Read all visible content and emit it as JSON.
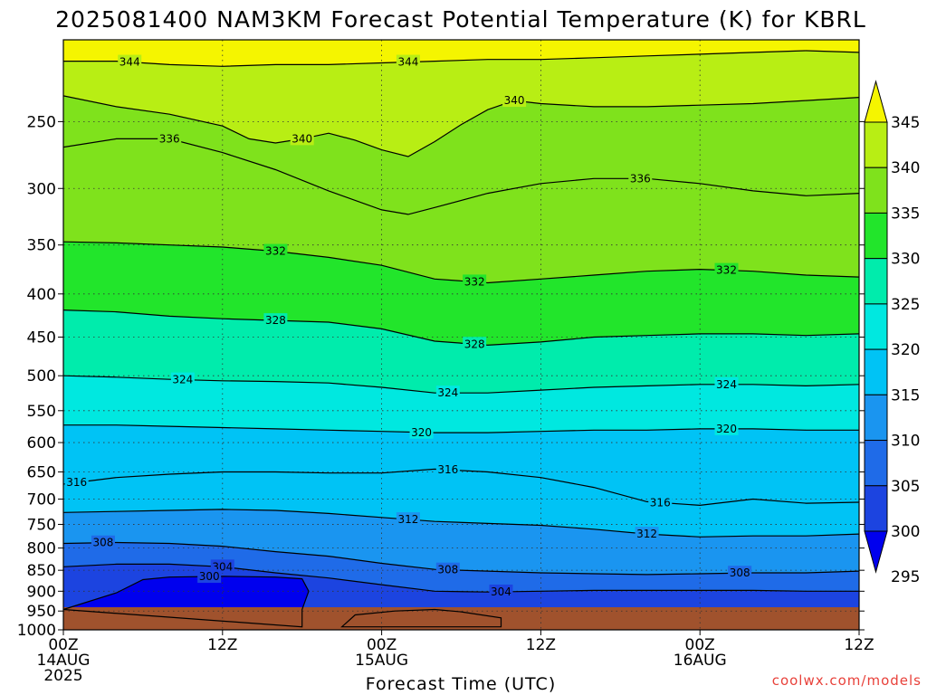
{
  "chart_data": {
    "type": "heatmap",
    "title": "2025081400 NAM3KM Forecast Potential Temperature (K) for KBRL",
    "xlabel": "Forecast Time (UTC)",
    "ylabel": "",
    "credit": "coolwx.com/models",
    "credit_color": "#e8413a",
    "x_ticks": [
      {
        "hour": 0,
        "lines": [
          "00Z",
          "14AUG",
          "2025"
        ]
      },
      {
        "hour": 12,
        "lines": [
          "12Z"
        ]
      },
      {
        "hour": 24,
        "lines": [
          "00Z",
          "15AUG"
        ]
      },
      {
        "hour": 36,
        "lines": [
          "12Z"
        ]
      },
      {
        "hour": 48,
        "lines": [
          "00Z",
          "16AUG"
        ]
      },
      {
        "hour": 60,
        "lines": [
          "12Z"
        ]
      }
    ],
    "xlim": [
      0,
      60
    ],
    "y_ticks": [
      250,
      300,
      350,
      400,
      450,
      500,
      550,
      600,
      650,
      700,
      750,
      800,
      850,
      900,
      950,
      1000
    ],
    "ylim_hpa": [
      200,
      1000
    ],
    "ground_color": "#a0522d",
    "colorbar": {
      "boundaries": [
        295,
        300,
        305,
        310,
        315,
        320,
        325,
        330,
        335,
        340,
        345
      ],
      "colors": [
        "#0000ee",
        "#1c44e0",
        "#1f6be8",
        "#1a95f0",
        "#00c3f5",
        "#00e8e0",
        "#00ecac",
        "#22e52b",
        "#7fe21c",
        "#b8ee14",
        "#f5f500"
      ],
      "tick_labels": [
        "345",
        "340",
        "335",
        "330",
        "325",
        "320",
        "315",
        "310",
        "305",
        "300",
        "295"
      ]
    },
    "levels": [
      {
        "theta": 344,
        "labels": [
          {
            "text": "344",
            "x_hour": 5.0
          },
          {
            "text": "344",
            "x_hour": 26.0
          }
        ],
        "points": [
          [
            0,
            212
          ],
          [
            4,
            212
          ],
          [
            8,
            214
          ],
          [
            12,
            215
          ],
          [
            16,
            214
          ],
          [
            20,
            214
          ],
          [
            24,
            213
          ],
          [
            28,
            212
          ],
          [
            32,
            211
          ],
          [
            36,
            211
          ],
          [
            40,
            210
          ],
          [
            44,
            209
          ],
          [
            48,
            208
          ],
          [
            52,
            207
          ],
          [
            56,
            206
          ],
          [
            60,
            207
          ]
        ]
      },
      {
        "theta": 340,
        "labels": [
          {
            "text": "340",
            "x_hour": 18.0
          },
          {
            "text": "340",
            "x_hour": 34.0
          }
        ],
        "points": [
          [
            0,
            233
          ],
          [
            4,
            240
          ],
          [
            8,
            245
          ],
          [
            12,
            253
          ],
          [
            14,
            262
          ],
          [
            16,
            265
          ],
          [
            18,
            262
          ],
          [
            20,
            258
          ],
          [
            22,
            263
          ],
          [
            24,
            270
          ],
          [
            26,
            275
          ],
          [
            28,
            264
          ],
          [
            30,
            252
          ],
          [
            32,
            242
          ],
          [
            34,
            236
          ],
          [
            36,
            238
          ],
          [
            40,
            240
          ],
          [
            44,
            240
          ],
          [
            48,
            239
          ],
          [
            52,
            238
          ],
          [
            56,
            236
          ],
          [
            60,
            234
          ]
        ]
      },
      {
        "theta": 336,
        "labels": [
          {
            "text": "336",
            "x_hour": 8.0
          },
          {
            "text": "336",
            "x_hour": 43.5
          }
        ],
        "points": [
          [
            0,
            268
          ],
          [
            4,
            262
          ],
          [
            8,
            262
          ],
          [
            12,
            272
          ],
          [
            16,
            285
          ],
          [
            20,
            302
          ],
          [
            24,
            318
          ],
          [
            26,
            322
          ],
          [
            28,
            316
          ],
          [
            32,
            304
          ],
          [
            36,
            296
          ],
          [
            40,
            292
          ],
          [
            44,
            292
          ],
          [
            48,
            296
          ],
          [
            52,
            302
          ],
          [
            56,
            306
          ],
          [
            60,
            304
          ]
        ]
      },
      {
        "theta": 332,
        "labels": [
          {
            "text": "332",
            "x_hour": 16.0
          },
          {
            "text": "332",
            "x_hour": 31.0
          },
          {
            "text": "332",
            "x_hour": 50.0
          }
        ],
        "points": [
          [
            0,
            347
          ],
          [
            4,
            348
          ],
          [
            8,
            350
          ],
          [
            12,
            352
          ],
          [
            16,
            356
          ],
          [
            20,
            362
          ],
          [
            24,
            370
          ],
          [
            28,
            384
          ],
          [
            32,
            388
          ],
          [
            36,
            384
          ],
          [
            40,
            380
          ],
          [
            44,
            376
          ],
          [
            48,
            374
          ],
          [
            52,
            376
          ],
          [
            56,
            380
          ],
          [
            60,
            382
          ]
        ]
      },
      {
        "theta": 328,
        "labels": [
          {
            "text": "328",
            "x_hour": 16.0
          },
          {
            "text": "328",
            "x_hour": 31.0
          }
        ],
        "points": [
          [
            0,
            418
          ],
          [
            4,
            420
          ],
          [
            8,
            425
          ],
          [
            12,
            428
          ],
          [
            16,
            430
          ],
          [
            20,
            432
          ],
          [
            24,
            440
          ],
          [
            28,
            455
          ],
          [
            32,
            460
          ],
          [
            36,
            456
          ],
          [
            40,
            450
          ],
          [
            44,
            448
          ],
          [
            48,
            446
          ],
          [
            52,
            446
          ],
          [
            56,
            448
          ],
          [
            60,
            446
          ]
        ]
      },
      {
        "theta": 324,
        "labels": [
          {
            "text": "324",
            "x_hour": 9.0
          },
          {
            "text": "324",
            "x_hour": 29.0
          },
          {
            "text": "324",
            "x_hour": 50.0
          }
        ],
        "points": [
          [
            0,
            500
          ],
          [
            4,
            502
          ],
          [
            8,
            505
          ],
          [
            12,
            507
          ],
          [
            16,
            508
          ],
          [
            20,
            510
          ],
          [
            24,
            516
          ],
          [
            28,
            524
          ],
          [
            32,
            524
          ],
          [
            36,
            520
          ],
          [
            40,
            516
          ],
          [
            44,
            514
          ],
          [
            48,
            512
          ],
          [
            52,
            512
          ],
          [
            56,
            514
          ],
          [
            60,
            512
          ]
        ]
      },
      {
        "theta": 320,
        "labels": [
          {
            "text": "320",
            "x_hour": 27.0
          },
          {
            "text": "320",
            "x_hour": 50.0
          }
        ],
        "points": [
          [
            0,
            572
          ],
          [
            4,
            572
          ],
          [
            8,
            574
          ],
          [
            12,
            576
          ],
          [
            16,
            578
          ],
          [
            20,
            580
          ],
          [
            24,
            582
          ],
          [
            28,
            584
          ],
          [
            32,
            584
          ],
          [
            36,
            582
          ],
          [
            40,
            580
          ],
          [
            44,
            580
          ],
          [
            48,
            578
          ],
          [
            52,
            578
          ],
          [
            56,
            580
          ],
          [
            60,
            580
          ]
        ]
      },
      {
        "theta": 316,
        "labels": [
          {
            "text": "316",
            "x_hour": 1.0
          },
          {
            "text": "316",
            "x_hour": 29.0
          },
          {
            "text": "316",
            "x_hour": 45.0
          }
        ],
        "points": [
          [
            0,
            672
          ],
          [
            4,
            660
          ],
          [
            8,
            654
          ],
          [
            12,
            650
          ],
          [
            16,
            650
          ],
          [
            20,
            652
          ],
          [
            24,
            652
          ],
          [
            28,
            645
          ],
          [
            32,
            650
          ],
          [
            36,
            660
          ],
          [
            40,
            678
          ],
          [
            44,
            705
          ],
          [
            48,
            712
          ],
          [
            52,
            700
          ],
          [
            56,
            708
          ],
          [
            60,
            706
          ]
        ]
      },
      {
        "theta": 312,
        "labels": [
          {
            "text": "312",
            "x_hour": 26.0
          },
          {
            "text": "312",
            "x_hour": 44.0
          }
        ],
        "points": [
          [
            0,
            726
          ],
          [
            4,
            724
          ],
          [
            8,
            722
          ],
          [
            12,
            720
          ],
          [
            16,
            722
          ],
          [
            20,
            728
          ],
          [
            24,
            736
          ],
          [
            28,
            744
          ],
          [
            32,
            748
          ],
          [
            36,
            752
          ],
          [
            40,
            760
          ],
          [
            44,
            770
          ],
          [
            48,
            776
          ],
          [
            52,
            774
          ],
          [
            56,
            774
          ],
          [
            60,
            770
          ]
        ]
      },
      {
        "theta": 308,
        "labels": [
          {
            "text": "308",
            "x_hour": 3.0
          },
          {
            "text": "308",
            "x_hour": 29.0
          },
          {
            "text": "308",
            "x_hour": 51.0
          }
        ],
        "points": [
          [
            0,
            790
          ],
          [
            4,
            788
          ],
          [
            8,
            790
          ],
          [
            12,
            796
          ],
          [
            16,
            808
          ],
          [
            20,
            818
          ],
          [
            24,
            834
          ],
          [
            28,
            848
          ],
          [
            32,
            852
          ],
          [
            36,
            856
          ],
          [
            40,
            858
          ],
          [
            44,
            860
          ],
          [
            48,
            858
          ],
          [
            52,
            856
          ],
          [
            56,
            856
          ],
          [
            60,
            852
          ]
        ]
      },
      {
        "theta": 304,
        "labels": [
          {
            "text": "304",
            "x_hour": 12.0
          },
          {
            "text": "304",
            "x_hour": 33.0
          }
        ],
        "points": [
          [
            0,
            842
          ],
          [
            4,
            836
          ],
          [
            8,
            836
          ],
          [
            12,
            842
          ],
          [
            16,
            856
          ],
          [
            20,
            868
          ],
          [
            24,
            884
          ],
          [
            28,
            900
          ],
          [
            32,
            902
          ],
          [
            36,
            900
          ],
          [
            40,
            898
          ],
          [
            44,
            898
          ],
          [
            48,
            898
          ],
          [
            52,
            898
          ],
          [
            56,
            900
          ],
          [
            60,
            900
          ]
        ]
      },
      {
        "theta": 300,
        "labels": [
          {
            "text": "300",
            "x_hour": 11.0
          }
        ],
        "points": [
          [
            0,
            946
          ],
          [
            4,
            904
          ],
          [
            6,
            872
          ],
          [
            8,
            866
          ],
          [
            12,
            864
          ],
          [
            16,
            866
          ],
          [
            18,
            870
          ],
          [
            18.5,
            900
          ],
          [
            18,
            946
          ],
          [
            18,
            992
          ]
        ]
      }
    ]
  }
}
